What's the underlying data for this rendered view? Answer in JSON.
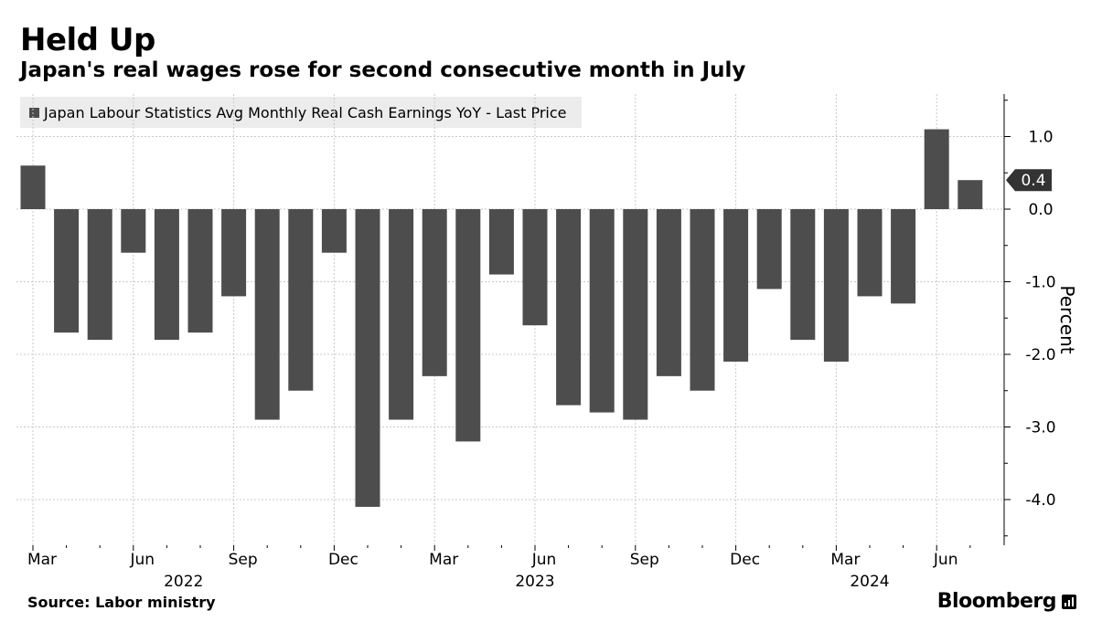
{
  "header": {
    "title": "Held Up",
    "subtitle": "Japan's real wages rose for second consecutive month in July"
  },
  "legend": {
    "label": "Japan Labour Statistics Avg Monthly Real Cash Earnings YoY - Last Price"
  },
  "footer": {
    "source": "Source: Labor ministry",
    "brand": "Bloomberg"
  },
  "chart_data": {
    "type": "bar",
    "categories": [
      "2022-03",
      "2022-04",
      "2022-05",
      "2022-06",
      "2022-07",
      "2022-08",
      "2022-09",
      "2022-10",
      "2022-11",
      "2022-12",
      "2023-01",
      "2023-02",
      "2023-03",
      "2023-04",
      "2023-05",
      "2023-06",
      "2023-07",
      "2023-08",
      "2023-09",
      "2023-10",
      "2023-11",
      "2023-12",
      "2024-01",
      "2024-02",
      "2024-03",
      "2024-04",
      "2024-05",
      "2024-06",
      "2024-07"
    ],
    "series": [
      {
        "name": "Japan Labour Statistics Avg Monthly Real Cash Earnings YoY - Last Price",
        "values": [
          0.6,
          -1.7,
          -1.8,
          -0.6,
          -1.8,
          -1.7,
          -1.2,
          -2.9,
          -2.5,
          -0.6,
          -4.1,
          -2.9,
          -2.3,
          -3.2,
          -0.9,
          -1.6,
          -2.7,
          -2.8,
          -2.9,
          -2.3,
          -2.5,
          -2.1,
          -1.1,
          -1.8,
          -2.1,
          -1.2,
          -1.3,
          1.1,
          0.4
        ]
      }
    ],
    "ylabel": "Percent",
    "ylim": [
      -4.6,
      1.6
    ],
    "yticks": [
      1.0,
      0.0,
      -1.0,
      -2.0,
      -3.0,
      -4.0
    ],
    "ytick_labels": [
      "1.0",
      "0.0",
      "-1.0",
      "-2.0",
      "-3.0",
      "-4.0"
    ],
    "x_month_labels": [
      {
        "index": 0,
        "label": "Mar"
      },
      {
        "index": 3,
        "label": "Jun"
      },
      {
        "index": 6,
        "label": "Sep"
      },
      {
        "index": 9,
        "label": "Dec"
      },
      {
        "index": 12,
        "label": "Mar"
      },
      {
        "index": 15,
        "label": "Jun"
      },
      {
        "index": 18,
        "label": "Sep"
      },
      {
        "index": 21,
        "label": "Dec"
      },
      {
        "index": 24,
        "label": "Mar"
      },
      {
        "index": 27,
        "label": "Jun"
      }
    ],
    "x_year_labels": [
      {
        "index": 4.5,
        "label": "2022"
      },
      {
        "index": 15,
        "label": "2023"
      },
      {
        "index": 25,
        "label": "2024"
      }
    ],
    "last_value_label": "0.4",
    "bar_color": "#4d4d4d",
    "grid": true,
    "legend_position": "top-left"
  }
}
